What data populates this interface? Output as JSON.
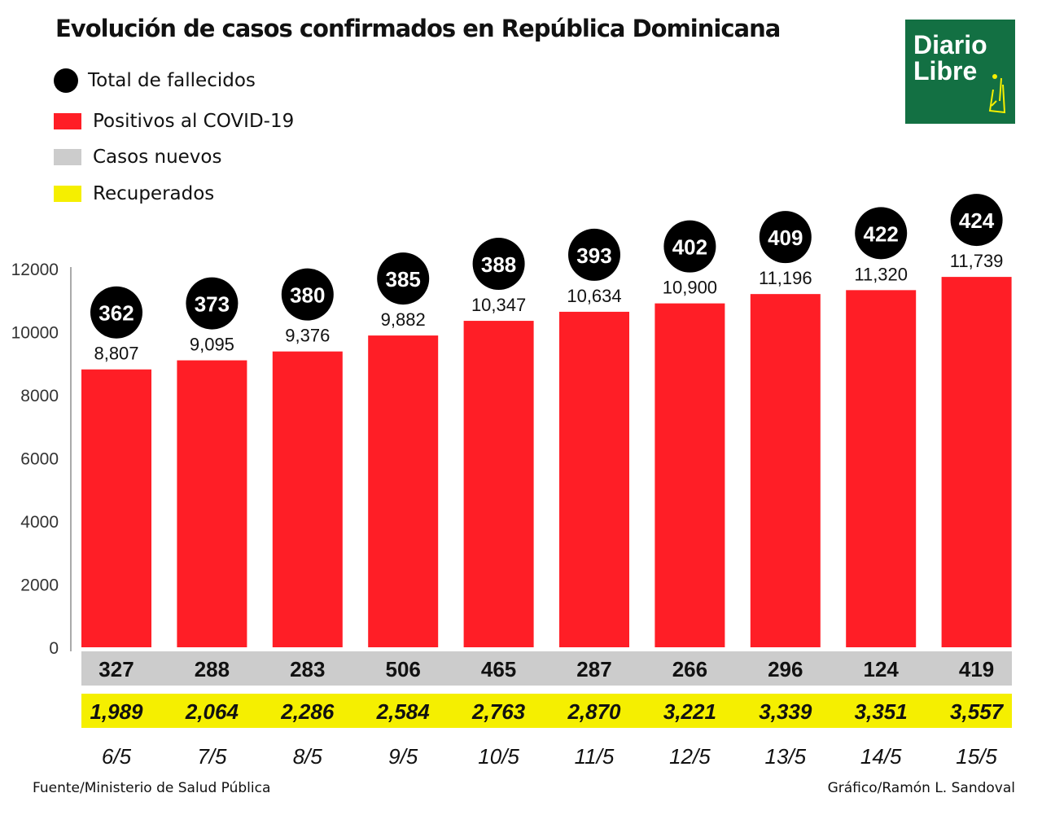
{
  "title": "Evolución de casos confirmados en República Dominicana",
  "legend": [
    {
      "label": "Total de fallecidos",
      "color": "#000000",
      "shape": "circle"
    },
    {
      "label": "Positivos al COVID-19",
      "color": "#ff1e26",
      "shape": "rect"
    },
    {
      "label": "Casos nuevos",
      "color": "#cccccc",
      "shape": "rect"
    },
    {
      "label": "Recuperados",
      "color": "#f5ef00",
      "shape": "rect"
    }
  ],
  "logo": {
    "text": "Diario Libre",
    "color": "#137043"
  },
  "source": "Fuente/Ministerio de Salud Pública",
  "credit": "Gráfico/Ramón L. Sandoval",
  "chart_data": {
    "type": "bar",
    "categories": [
      "6/5",
      "7/5",
      "8/5",
      "9/5",
      "10/5",
      "11/5",
      "12/5",
      "13/5",
      "14/5",
      "15/5"
    ],
    "ylim": [
      0,
      12000
    ],
    "yticks": [
      0,
      2000,
      4000,
      6000,
      8000,
      10000,
      12000
    ],
    "series": [
      {
        "name": "Positivos al COVID-19",
        "values": [
          8807,
          9095,
          9376,
          9882,
          10347,
          10634,
          10900,
          11196,
          11320,
          11739
        ],
        "labels": [
          "8,807",
          "9,095",
          "9,376",
          "9,882",
          "10,347",
          "10,634",
          "10,900",
          "11,196",
          "11,320",
          "11,739"
        ]
      },
      {
        "name": "Total de fallecidos",
        "values": [
          362,
          373,
          380,
          385,
          388,
          393,
          402,
          409,
          422,
          424
        ]
      },
      {
        "name": "Casos nuevos",
        "values": [
          327,
          288,
          283,
          506,
          465,
          287,
          266,
          296,
          124,
          419
        ]
      },
      {
        "name": "Recuperados",
        "values": [
          1989,
          2064,
          2286,
          2584,
          2763,
          2870,
          3221,
          3339,
          3351,
          3557
        ],
        "labels": [
          "1,989",
          "2,064",
          "2,286",
          "2,584",
          "2,763",
          "2,870",
          "3,221",
          "3,339",
          "3,351",
          "3,557"
        ]
      }
    ]
  }
}
